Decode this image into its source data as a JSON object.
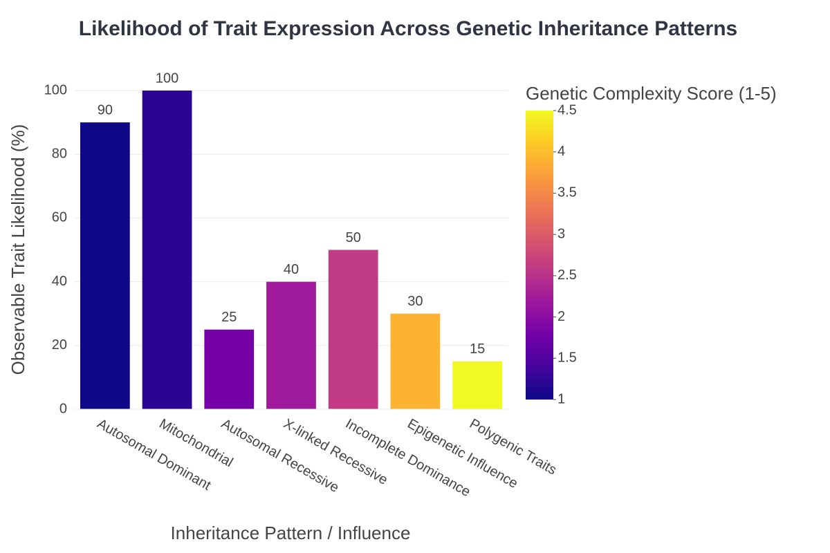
{
  "chart_data": {
    "type": "bar",
    "title": "Likelihood of Trait Expression Across Genetic Inheritance Patterns",
    "x_label": "Inheritance Pattern / Influence",
    "y_label": "Observable Trait Likelihood (%)",
    "categories": [
      "Autosomal Dominant",
      "Mitochondrial",
      "Autosomal Recessive",
      "X-linked Recessive",
      "Incomplete Dominance",
      "Epigenetic Influence",
      "Polygenic Traits"
    ],
    "values": [
      90,
      100,
      25,
      40,
      50,
      30,
      15
    ],
    "color_values": [
      1,
      1.2,
      1.8,
      2.2,
      2.6,
      3.9,
      4.5
    ],
    "colorbar_title": "Genetic Complexity Score (1-5)",
    "clim": [
      1,
      4.5
    ],
    "cticks": [
      1,
      1.5,
      2,
      2.5,
      3,
      3.5,
      4,
      4.5
    ],
    "colorscale": [
      "#0d0887",
      "#46039f",
      "#7201a8",
      "#9c179e",
      "#bd3786",
      "#d8576b",
      "#ed7953",
      "#fb9f3a",
      "#fdca26",
      "#f0f921"
    ],
    "ylim": [
      0,
      100
    ],
    "yticks": [
      0,
      20,
      40,
      60,
      80,
      100
    ],
    "grid": true
  }
}
